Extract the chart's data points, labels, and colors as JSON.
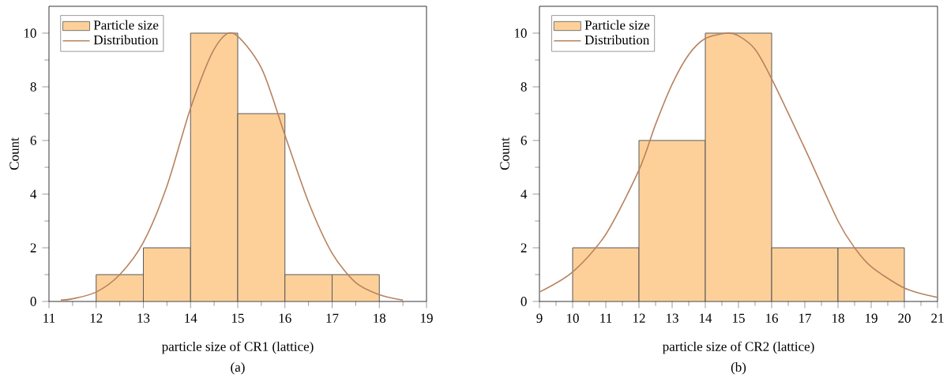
{
  "chart_data": [
    {
      "type": "histogram",
      "xlabel": "particle size of CR1 (lattice)",
      "ylabel": "Count",
      "annotations": [
        "(a)"
      ],
      "xlim": [
        11,
        19
      ],
      "xticks": [
        11,
        12,
        13,
        14,
        15,
        16,
        17,
        18,
        19
      ],
      "ylim": [
        0,
        11
      ],
      "yticks": [
        0,
        2,
        4,
        6,
        8,
        10
      ],
      "legend": "top left",
      "series": [
        {
          "name": "Particle size",
          "color": "#fdd09a",
          "bins": [
            12,
            13,
            14,
            15,
            16,
            17,
            18
          ],
          "values": [
            1,
            2,
            10,
            7,
            1,
            1
          ]
        },
        {
          "name": "Distribution",
          "type": "line",
          "color": "#b8825e",
          "x": [
            11.25,
            11.5,
            12,
            12.5,
            13,
            13.5,
            14,
            14.5,
            14.9,
            15.5,
            16,
            16.5,
            17,
            17.5,
            18,
            18.5
          ],
          "values": [
            0.05,
            0.1,
            0.35,
            1.0,
            2.2,
            4.3,
            7.2,
            9.4,
            10,
            8.7,
            6.2,
            3.7,
            1.8,
            0.7,
            0.25,
            0.05
          ]
        }
      ]
    },
    {
      "type": "histogram",
      "xlabel": "particle size of CR2 (lattice)",
      "ylabel": "Count",
      "annotations": [
        "(b)"
      ],
      "xlim": [
        9,
        21
      ],
      "xticks": [
        9,
        10,
        11,
        12,
        13,
        14,
        15,
        16,
        17,
        18,
        19,
        20,
        21
      ],
      "ylim": [
        0,
        11
      ],
      "yticks": [
        0,
        2,
        4,
        6,
        8,
        10
      ],
      "legend": "top left",
      "series": [
        {
          "name": "Particle size",
          "color": "#fdd09a",
          "bins": [
            10,
            12,
            14,
            16,
            18,
            20
          ],
          "values": [
            2,
            6,
            10,
            2,
            2
          ]
        },
        {
          "name": "Distribution",
          "type": "line",
          "color": "#b8825e",
          "x": [
            9,
            10,
            11,
            12,
            12.5,
            13,
            13.5,
            14,
            14.65,
            15,
            15.5,
            16,
            17,
            18,
            18.5,
            19,
            20,
            21
          ],
          "values": [
            0.35,
            1.1,
            2.5,
            4.9,
            6.6,
            8.1,
            9.2,
            9.8,
            10,
            9.9,
            9.4,
            8.3,
            5.7,
            3.0,
            2.0,
            1.3,
            0.5,
            0.15
          ]
        }
      ]
    }
  ]
}
